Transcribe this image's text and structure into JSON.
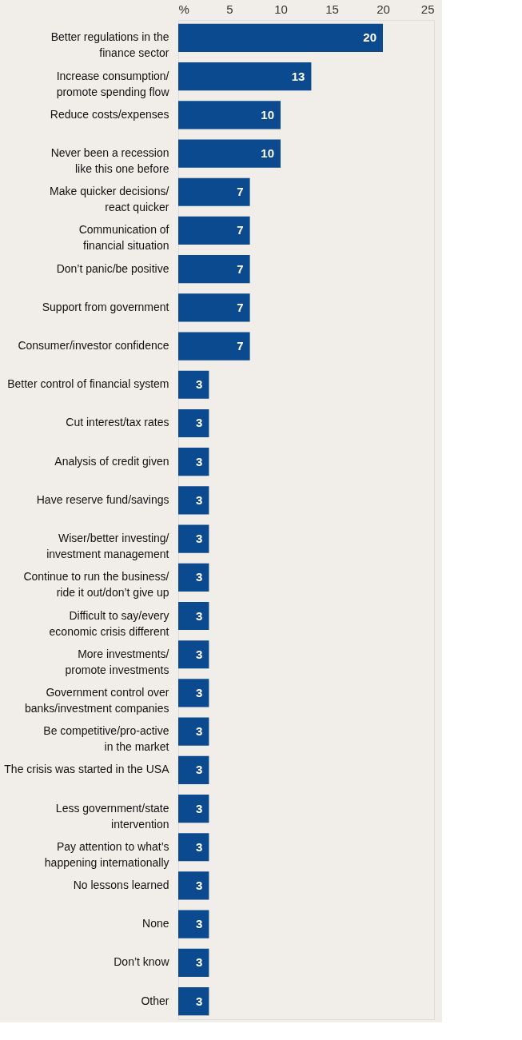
{
  "chart_data": {
    "type": "bar",
    "orientation": "horizontal",
    "categories": [
      "Better regulations in the\nfinance sector",
      "Increase consumption/\npromote spending flow",
      "Reduce costs/expenses",
      "Never been a recession\nlike this one before",
      "Make quicker decisions/\nreact quicker",
      "Communication of\nfinancial situation",
      "Don’t panic/be positive",
      "Support from government",
      "Consumer/investor confidence",
      "Better control of financial system",
      "Cut interest/tax rates",
      "Analysis of credit given",
      "Have reserve fund/savings",
      "Wiser/better investing/\ninvestment management",
      "Continue to run the business/\nride it out/don’t give up",
      "Difficult to say/every\neconomic crisis different",
      "More investments/\npromote investments",
      "Government control over\nbanks/investment companies",
      "Be competitive/pro-active\nin the market",
      "The crisis was started in the USA",
      "Less government/state\nintervention",
      "Pay attention to what’s\nhappening internationally",
      "No lessons learned",
      "None",
      "Don’t know",
      "Other"
    ],
    "values": [
      20,
      13,
      10,
      10,
      7,
      7,
      7,
      7,
      7,
      3,
      3,
      3,
      3,
      3,
      3,
      3,
      3,
      3,
      3,
      3,
      3,
      3,
      3,
      3,
      3,
      3
    ],
    "color": "#0b4a8f",
    "xlim": [
      0,
      25
    ],
    "xticks": [
      {
        "value": 0,
        "label": "%"
      },
      5,
      10,
      15,
      20,
      25
    ],
    "data_labels": true,
    "grid": false
  }
}
